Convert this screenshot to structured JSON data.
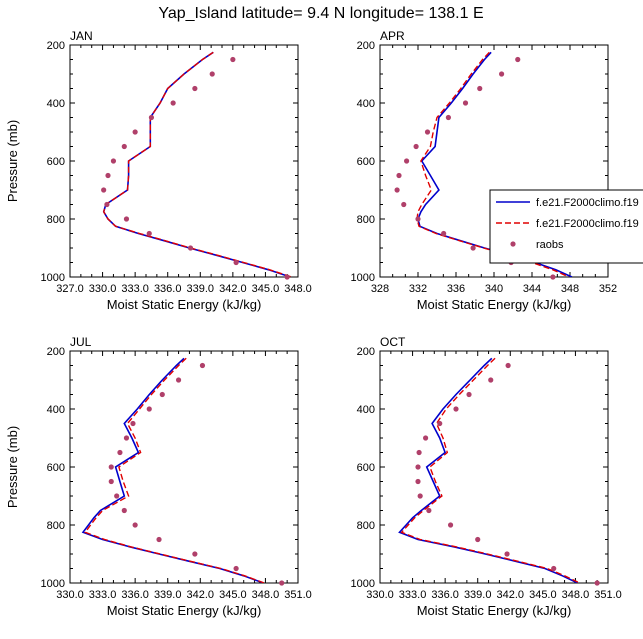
{
  "title": "Yap_Island  latitude= 9.4 N longitude= 138.1 E",
  "legend": {
    "entries": [
      "f.e21.F2000climo.f19",
      "f.e21.F2000climo.f19",
      "raobs"
    ]
  },
  "colors": {
    "model1": "#0000cc",
    "model2": "#e00000",
    "raobs": "#b0406a"
  },
  "chart_data": [
    {
      "type": "line",
      "panel": "JAN",
      "xlabel": "Moist Static Energy (kJ/kg)",
      "ylabel": "Pressure (mb)",
      "xlim": [
        327,
        348
      ],
      "xticks": [
        "327.0",
        "330.0",
        "333.0",
        "336.0",
        "339.0",
        "342.0",
        "345.0",
        "348.0"
      ],
      "ylim": [
        200,
        1000
      ],
      "yticks": [
        "200",
        "400",
        "600",
        "800",
        "1000"
      ],
      "y_reversed": true,
      "pressure_levels": [
        225,
        250,
        300,
        350,
        400,
        450,
        500,
        550,
        600,
        650,
        700,
        750,
        775,
        800,
        825,
        850,
        875,
        900,
        925,
        950,
        975,
        1000
      ],
      "series": [
        {
          "name": "f.e21.F2000climo.f19",
          "values": [
            340.2,
            339.2,
            337.5,
            336.0,
            335.3,
            334.4,
            334.4,
            334.4,
            332.4,
            332.4,
            332.3,
            330.3,
            330.1,
            330.5,
            331.2,
            333.3,
            335.7,
            338.0,
            340.5,
            342.9,
            345.3,
            347.3
          ]
        },
        {
          "name": "f.e21.F2000climo.f19",
          "values": [
            340.2,
            339.2,
            337.5,
            336.0,
            335.3,
            334.4,
            334.4,
            334.4,
            332.4,
            332.4,
            332.3,
            330.3,
            330.1,
            330.5,
            331.2,
            333.4,
            335.8,
            338.1,
            340.6,
            343.0,
            345.4,
            347.4
          ]
        },
        {
          "name": "raobs",
          "pressure": [
            250,
            300,
            350,
            400,
            450,
            500,
            550,
            600,
            650,
            700,
            750,
            800,
            850,
            900,
            950,
            1000
          ],
          "values": [
            342.0,
            340.1,
            338.5,
            336.5,
            334.5,
            333.0,
            332.0,
            331.0,
            330.5,
            330.1,
            330.4,
            332.2,
            334.3,
            338.1,
            342.3,
            347.0
          ]
        }
      ]
    },
    {
      "type": "line",
      "panel": "APR",
      "xlabel": "Moist Static Energy (kJ/kg)",
      "ylabel": "",
      "xlim": [
        328,
        352
      ],
      "xticks": [
        "328",
        "332",
        "336",
        "340",
        "344",
        "348",
        "352"
      ],
      "ylim": [
        200,
        1000
      ],
      "yticks": [
        "200",
        "400",
        "600",
        "800",
        "1000"
      ],
      "y_reversed": true,
      "pressure_levels": [
        225,
        250,
        300,
        350,
        400,
        450,
        500,
        550,
        600,
        650,
        700,
        750,
        775,
        800,
        825,
        850,
        875,
        900,
        925,
        950,
        975,
        1000
      ],
      "series": [
        {
          "name": "f.e21.F2000climo.f19",
          "values": [
            339.7,
            339.0,
            337.8,
            336.7,
            335.5,
            334.2,
            334.0,
            333.8,
            332.4,
            333.3,
            334.2,
            332.8,
            332.3,
            332.0,
            332.2,
            334.0,
            336.5,
            339.0,
            341.8,
            344.3,
            346.5,
            348.2
          ]
        },
        {
          "name": "f.e21.F2000climo.f19",
          "values": [
            339.5,
            338.8,
            337.6,
            336.5,
            335.3,
            334.0,
            333.6,
            333.3,
            332.3,
            332.8,
            333.4,
            332.4,
            332.0,
            331.9,
            332.1,
            333.9,
            336.4,
            338.9,
            341.6,
            344.0,
            346.2,
            347.9
          ]
        },
        {
          "name": "raobs",
          "pressure": [
            250,
            300,
            350,
            400,
            450,
            500,
            550,
            600,
            650,
            700,
            750,
            800,
            850,
            900,
            950,
            1000
          ],
          "values": [
            342.5,
            340.8,
            338.5,
            337.0,
            335.2,
            333.0,
            331.8,
            330.8,
            330.0,
            329.8,
            330.5,
            332.0,
            334.7,
            337.8,
            341.8,
            346.2
          ]
        }
      ]
    },
    {
      "type": "line",
      "panel": "JUL",
      "xlabel": "Moist Static Energy (kJ/kg)",
      "ylabel": "Pressure (mb)",
      "xlim": [
        330,
        351
      ],
      "xticks": [
        "330.0",
        "333.0",
        "336.0",
        "339.0",
        "342.0",
        "345.0",
        "348.0",
        "351.0"
      ],
      "ylim": [
        200,
        1000
      ],
      "yticks": [
        "200",
        "400",
        "600",
        "800",
        "1000"
      ],
      "y_reversed": true,
      "pressure_levels": [
        225,
        250,
        300,
        350,
        400,
        450,
        500,
        550,
        600,
        650,
        700,
        750,
        775,
        800,
        825,
        850,
        875,
        900,
        925,
        950,
        975,
        1000
      ],
      "series": [
        {
          "name": "f.e21.F2000climo.f19",
          "values": [
            340.5,
            339.8,
            338.5,
            337.3,
            336.2,
            335.0,
            335.7,
            336.3,
            334.2,
            334.6,
            335.0,
            332.8,
            332.2,
            331.7,
            331.2,
            333.0,
            335.5,
            338.2,
            341.0,
            343.8,
            346.0,
            347.8
          ]
        },
        {
          "name": "f.e21.F2000climo.f19",
          "values": [
            340.7,
            340.0,
            338.7,
            337.5,
            336.4,
            335.3,
            336.0,
            336.5,
            334.5,
            334.9,
            335.4,
            333.0,
            332.4,
            331.9,
            331.4,
            333.2,
            335.6,
            338.3,
            341.1,
            343.9,
            346.1,
            347.9
          ]
        },
        {
          "name": "raobs",
          "pressure": [
            250,
            300,
            350,
            400,
            450,
            500,
            550,
            600,
            650,
            700,
            750,
            800,
            850,
            900,
            950,
            1000
          ],
          "values": [
            342.2,
            340.0,
            338.5,
            337.3,
            335.8,
            335.2,
            334.6,
            333.8,
            333.8,
            334.3,
            335.0,
            336.0,
            338.2,
            341.5,
            345.3,
            349.5
          ]
        }
      ]
    },
    {
      "type": "line",
      "panel": "OCT",
      "xlabel": "Moist Static Energy (kJ/kg)",
      "ylabel": "",
      "xlim": [
        330,
        351
      ],
      "xticks": [
        "330.0",
        "333.0",
        "336.0",
        "339.0",
        "342.0",
        "345.0",
        "348.0",
        "351.0"
      ],
      "ylim": [
        200,
        1000
      ],
      "yticks": [
        "200",
        "400",
        "600",
        "800",
        "1000"
      ],
      "y_reversed": true,
      "pressure_levels": [
        225,
        250,
        300,
        350,
        400,
        450,
        500,
        550,
        600,
        650,
        700,
        750,
        775,
        800,
        825,
        850,
        875,
        900,
        925,
        950,
        975,
        1000
      ],
      "series": [
        {
          "name": "f.e21.F2000climo.f19",
          "values": [
            340.3,
            339.6,
            338.3,
            337.0,
            335.8,
            334.8,
            335.5,
            336.0,
            334.3,
            334.9,
            335.5,
            333.8,
            333.0,
            332.4,
            331.8,
            333.5,
            336.8,
            339.7,
            342.5,
            345.2,
            346.8,
            348.2
          ]
        },
        {
          "name": "f.e21.F2000climo.f19",
          "values": [
            340.6,
            339.9,
            338.6,
            337.3,
            336.1,
            335.2,
            335.8,
            336.2,
            334.6,
            335.1,
            335.7,
            334.0,
            333.2,
            332.6,
            332.0,
            333.7,
            337.0,
            339.9,
            342.7,
            345.4,
            347.0,
            348.4
          ]
        },
        {
          "name": "raobs",
          "pressure": [
            250,
            300,
            350,
            400,
            450,
            500,
            550,
            600,
            650,
            700,
            750,
            800,
            850,
            900,
            950,
            1000
          ],
          "values": [
            341.8,
            340.2,
            338.2,
            337.0,
            335.5,
            334.2,
            333.6,
            333.5,
            333.5,
            333.7,
            334.5,
            336.5,
            339.0,
            341.7,
            346.0,
            350.0
          ]
        }
      ]
    }
  ]
}
